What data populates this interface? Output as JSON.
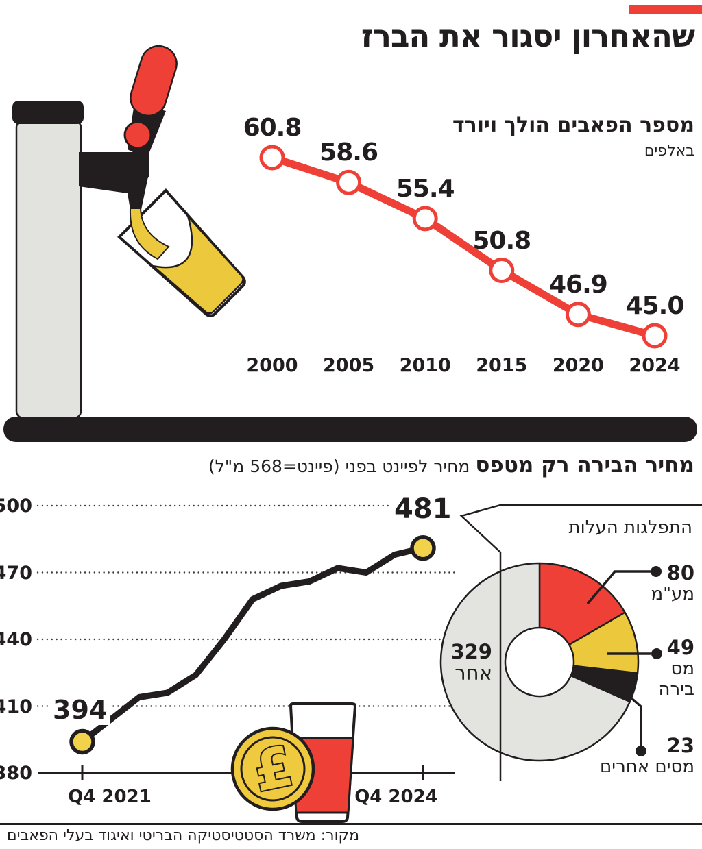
{
  "page": {
    "title": "שהאחרון יסגור את הברז",
    "source": "מקור: משרד הסטטיסטיקה הבריטי ואיגוד בעלי הפאבים",
    "accent_color": "#ee4036"
  },
  "colors": {
    "red": "#ee4036",
    "yellow": "#ecc83d",
    "marker_yellow": "#f2d14b",
    "ink": "#221e1f",
    "light_gray": "#e3e3e0"
  },
  "chart_data": [
    {
      "id": "pubs_decline",
      "type": "line",
      "title": "מספר הפאבים הולך ויורד",
      "unit_label": "באלפים",
      "categories": [
        "2000",
        "2005",
        "2010",
        "2015",
        "2020",
        "2024"
      ],
      "values": [
        60.8,
        58.6,
        55.4,
        50.8,
        46.9,
        45.0
      ],
      "line_color": "#ee4036",
      "marker_style": "open-circle",
      "grid": false,
      "value_labels_shown": true
    },
    {
      "id": "pint_price",
      "type": "line",
      "title": "מחיר הבירה רק מטפס",
      "subtitle": "מחיר לפיינט בפני (פיינט=568 מ\"ל)",
      "x_start_label": "Q4 2021",
      "x_end_label": "Q4 2024",
      "interval": "quarterly",
      "values": [
        394,
        404,
        414,
        416,
        424,
        440,
        458,
        464,
        466,
        472,
        470,
        478,
        481
      ],
      "first_point_label": "394",
      "last_point_label": "481",
      "y_ticks": [
        500,
        470,
        440,
        410,
        380
      ],
      "ylim": [
        380,
        500
      ],
      "grid": "dotted",
      "line_color": "#221e1f",
      "marker_color": "#f2d14b"
    },
    {
      "id": "cost_breakdown",
      "type": "pie",
      "donut": true,
      "title": "התפלגות העלות",
      "slices": [
        {
          "label": "מע\"מ",
          "label_lines": [
            "מע\"מ"
          ],
          "value": 80,
          "color": "#ee4036"
        },
        {
          "label": "מס בירה",
          "label_lines": [
            "מס",
            "בירה"
          ],
          "value": 49,
          "color": "#ecc83d"
        },
        {
          "label": "מסים אחרים",
          "label_lines": [
            "מסים אחרים"
          ],
          "value": 23,
          "color": "#221e1f"
        },
        {
          "label": "אחר",
          "label_lines": [
            "אחר"
          ],
          "value": 329,
          "color": "#e3e3e0"
        }
      ],
      "total": 481
    }
  ]
}
